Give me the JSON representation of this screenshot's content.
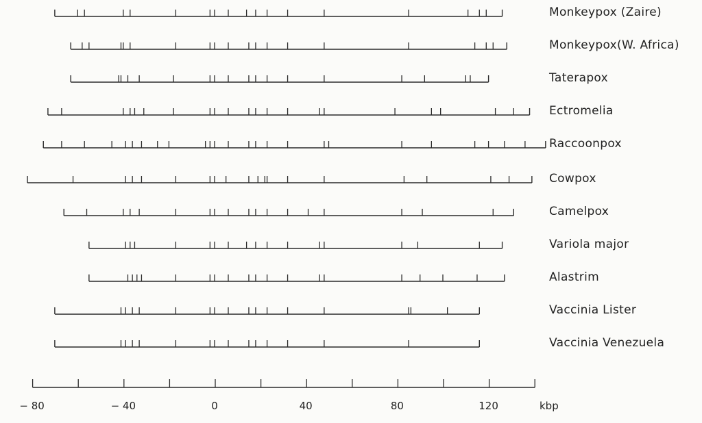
{
  "chart_data": {
    "type": "restriction-map",
    "x_unit": "kbp",
    "xlim": [
      -80,
      140
    ],
    "axis_ticks": [
      -80,
      -40,
      0,
      40,
      80,
      120
    ],
    "axis_minor_ticks": [
      -80,
      -60,
      -40,
      -20,
      0,
      20,
      40,
      60,
      80,
      100,
      120,
      140
    ],
    "strains": [
      {
        "name": "Monkeypox (Zaire)",
        "start": -70,
        "end": 126,
        "sites": [
          -60,
          -57,
          -40,
          -37,
          -17,
          -2,
          0,
          6,
          14,
          18,
          23,
          32,
          48,
          85,
          111,
          116,
          119
        ]
      },
      {
        "name": "Monkeypox(W. Africa)",
        "start": -63,
        "end": 128,
        "sites": [
          -58,
          -55,
          -41,
          -40,
          -37,
          -17,
          -2,
          0,
          6,
          15,
          18,
          23,
          32,
          48,
          85,
          114,
          119,
          122
        ]
      },
      {
        "name": "Taterapox",
        "start": -63,
        "end": 120,
        "sites": [
          -42,
          -41,
          -38,
          -33,
          -18,
          -2,
          0,
          6,
          15,
          18,
          23,
          32,
          48,
          82,
          92,
          110,
          112
        ]
      },
      {
        "name": "Ectromelia",
        "start": -73,
        "end": 138,
        "sites": [
          -67,
          -40,
          -37,
          -35,
          -31,
          -18,
          -2,
          0,
          6,
          15,
          18,
          23,
          32,
          46,
          48,
          79,
          95,
          99,
          123,
          131
        ]
      },
      {
        "name": "Raccoonpox",
        "start": -75,
        "end": 145,
        "sites": [
          -67,
          -57,
          -45,
          -39,
          -36,
          -32,
          -25,
          -20,
          -4,
          -2,
          0,
          6,
          15,
          18,
          23,
          32,
          48,
          50,
          82,
          95,
          114,
          120,
          127,
          136
        ]
      },
      {
        "name": "Cowpox",
        "start": -82,
        "end": 139,
        "sites": [
          -62,
          -39,
          -36,
          -32,
          -17,
          -2,
          0,
          5,
          15,
          19,
          22,
          23,
          32,
          48,
          83,
          93,
          121,
          129
        ]
      },
      {
        "name": "Camelpox",
        "start": -66,
        "end": 131,
        "sites": [
          -56,
          -40,
          -37,
          -33,
          -17,
          -2,
          0,
          6,
          15,
          18,
          23,
          32,
          41,
          48,
          82,
          91,
          122
        ]
      },
      {
        "name": "Variola major",
        "start": -55,
        "end": 126,
        "sites": [
          -39,
          -37,
          -35,
          -17,
          -2,
          0,
          6,
          14,
          18,
          23,
          32,
          46,
          48,
          82,
          89,
          116
        ]
      },
      {
        "name": "Alastrim",
        "start": -55,
        "end": 127,
        "sites": [
          -38,
          -36,
          -34,
          -32,
          -17,
          -2,
          0,
          6,
          15,
          18,
          23,
          32,
          46,
          48,
          82,
          90,
          100,
          115
        ]
      },
      {
        "name": "Vaccinia Lister",
        "start": -70,
        "end": 116,
        "sites": [
          -41,
          -39,
          -36,
          -33,
          -17,
          -2,
          0,
          6,
          15,
          18,
          23,
          32,
          48,
          85,
          86,
          102
        ]
      },
      {
        "name": "Vaccinia Venezuela",
        "start": -70,
        "end": 116,
        "sites": [
          -41,
          -39,
          -36,
          -33,
          -17,
          -2,
          0,
          6,
          15,
          18,
          23,
          32,
          48,
          85
        ]
      }
    ]
  }
}
